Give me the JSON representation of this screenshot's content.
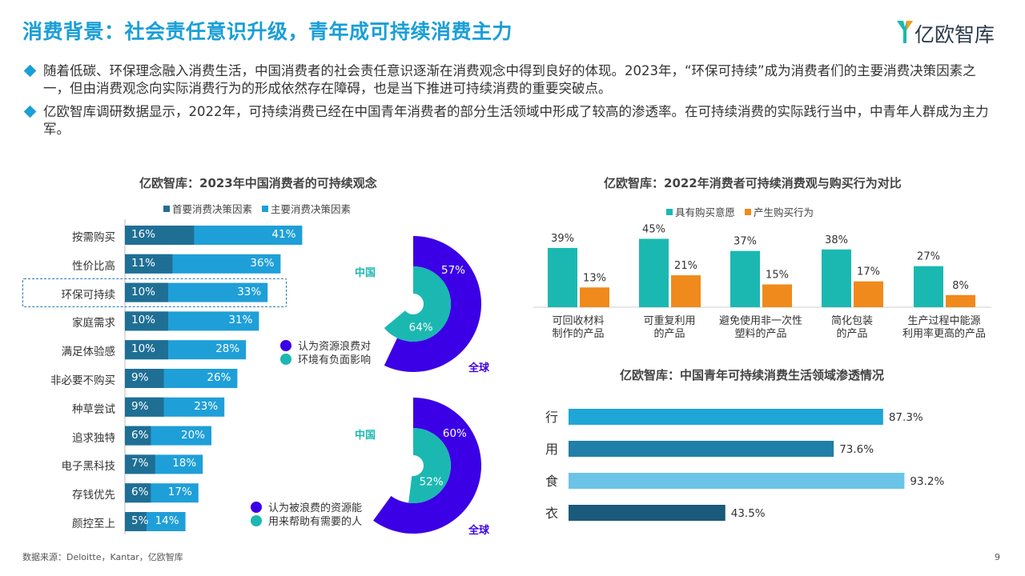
{
  "header": {
    "title": "消费背景：社会责任意识升级，青年成可持续消费主力",
    "logo_text": "亿欧智库"
  },
  "bullets": [
    "随着低碳、环保理念融入消费生活，中国消费者的社会责任意识逐渐在消费观念中得到良好的体现。2023年，“环保可持续”成为消费者们的主要消费决策因素之一，但由消费观念向实际消费行为的形成依然存在障碍，也是当下推进可持续消费的重要突破点。",
    "亿欧智库调研数据显示，2022年，可持续消费已经在中国青年消费者的部分生活领域中形成了较高的渗透率。在可持续消费的实际践行当中，中青年人群成为主力军。"
  ],
  "footer": {
    "source": "数据来源：Deloitte，Kantar，亿欧智库",
    "page": "9"
  },
  "colors": {
    "accent": "#1a9fd6",
    "primary_factor": "#1f6f95",
    "main_factor": "#1f9fd8",
    "teal": "#1bb8b2",
    "orange": "#f08a1c",
    "purple": "#3b00e6",
    "bar_row": "#1ea6d6",
    "bar_use": "#1f7fa8",
    "bar_food": "#6bc4e8",
    "bar_cloth": "#1a5a7a"
  },
  "chart_data": [
    {
      "type": "bar",
      "orientation": "horizontal",
      "stacked": true,
      "title": "亿欧智库：2023年中国消费者的可持续观念",
      "categories": [
        "按需购买",
        "性价比高",
        "环保可持续",
        "家庭需求",
        "满足体验感",
        "非必要不购买",
        "种草尝试",
        "追求独特",
        "电子黑科技",
        "存钱优先",
        "颜控至上"
      ],
      "series": [
        {
          "name": "首要消费决策因素",
          "values": [
            16,
            11,
            10,
            10,
            10,
            9,
            9,
            6,
            7,
            6,
            5
          ],
          "labels": [
            "16%",
            "11%",
            "10%",
            "10%",
            "10%",
            "9%",
            "9%",
            "6%",
            "7%",
            "6%",
            "5%"
          ]
        },
        {
          "name": "主要消费决策因素",
          "values": [
            41,
            36,
            33,
            31,
            28,
            26,
            23,
            20,
            18,
            17,
            14
          ],
          "labels": [
            "41%",
            "36%",
            "33%",
            "31%",
            "28%",
            "26%",
            "23%",
            "20%",
            "18%",
            "17%",
            "14%"
          ]
        }
      ],
      "highlight_category": "环保可持续"
    },
    {
      "type": "pie",
      "variant": "nested-donut",
      "series": [
        {
          "name": "中国",
          "value": 64,
          "label": "64%"
        },
        {
          "name": "全球",
          "value": 57,
          "label": "57%"
        }
      ],
      "legend": [
        "认为资源浪费对",
        "环境有负面影响"
      ]
    },
    {
      "type": "pie",
      "variant": "nested-donut",
      "series": [
        {
          "name": "中国",
          "value": 52,
          "label": "52%"
        },
        {
          "name": "全球",
          "value": 60,
          "label": "60%"
        }
      ],
      "legend": [
        "认为被浪费的资源能",
        "用来帮助有需要的人"
      ]
    },
    {
      "type": "bar",
      "orientation": "vertical",
      "title": "亿欧智库：2022年消费者可持续消费观与购买行为对比",
      "categories": [
        [
          "可回收材料",
          "制作的产品"
        ],
        [
          "可重复利用",
          "的产品"
        ],
        [
          "避免使用非一次性",
          "塑料的产品"
        ],
        [
          "简化包装",
          "的产品"
        ],
        [
          "生产过程中能源",
          "利用率更高的产品"
        ]
      ],
      "series": [
        {
          "name": "具有购买意愿",
          "values": [
            39,
            45,
            37,
            38,
            27
          ],
          "labels": [
            "39%",
            "45%",
            "37%",
            "38%",
            "27%"
          ]
        },
        {
          "name": "产生购买行为",
          "values": [
            13,
            21,
            15,
            17,
            8
          ],
          "labels": [
            "13%",
            "21%",
            "15%",
            "17%",
            "8%"
          ]
        }
      ],
      "ylim": [
        0,
        50
      ]
    },
    {
      "type": "bar",
      "orientation": "horizontal",
      "title": "亿欧智库：中国青年可持续消费生活领域渗透情况",
      "categories": [
        "行",
        "用",
        "食",
        "衣"
      ],
      "values": [
        87.3,
        73.6,
        93.2,
        43.5
      ],
      "labels": [
        "87.3%",
        "73.6%",
        "93.2%",
        "43.5%"
      ],
      "xlim": [
        0,
        100
      ]
    }
  ]
}
